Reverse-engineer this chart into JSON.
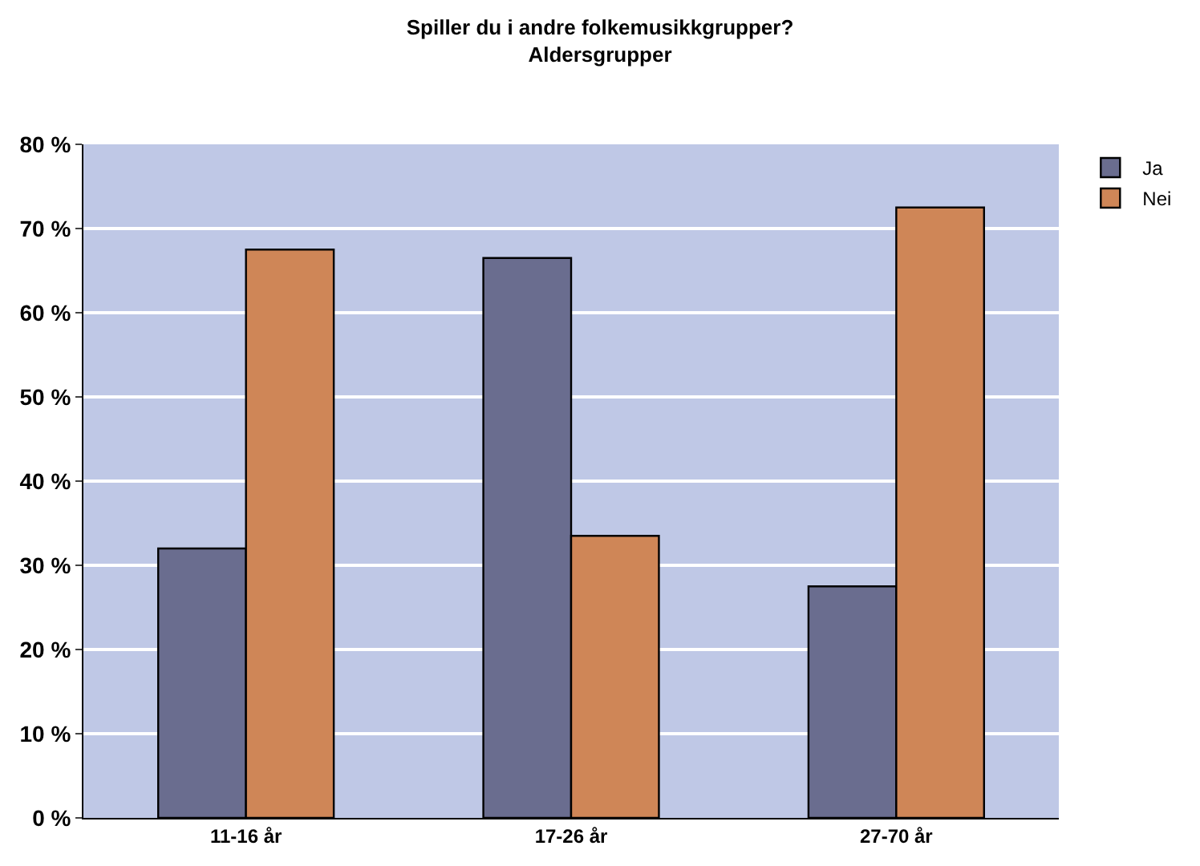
{
  "chart_data": {
    "type": "bar",
    "title": "Spiller du i andre folkemusikkgrupper?",
    "subtitle": "Aldersgrupper",
    "categories": [
      "11-16 år",
      "17-26 år",
      "27-70 år"
    ],
    "series": [
      {
        "name": "Ja",
        "color": "#6a6d8f",
        "values": [
          32,
          66.5,
          27.5
        ]
      },
      {
        "name": "Nei",
        "color": "#cf8657",
        "values": [
          67.5,
          33.5,
          72.5
        ]
      }
    ],
    "ylim": [
      0,
      80
    ],
    "yticks": [
      {
        "value": 0,
        "label": "0 %"
      },
      {
        "value": 10,
        "label": "10 %"
      },
      {
        "value": 20,
        "label": "20 %"
      },
      {
        "value": 30,
        "label": "30 %"
      },
      {
        "value": 40,
        "label": "40 %"
      },
      {
        "value": 50,
        "label": "50 %"
      },
      {
        "value": 60,
        "label": "60 %"
      },
      {
        "value": 70,
        "label": "70 %"
      },
      {
        "value": 80,
        "label": "80 %"
      }
    ],
    "grid": "y",
    "legend": "top right"
  }
}
